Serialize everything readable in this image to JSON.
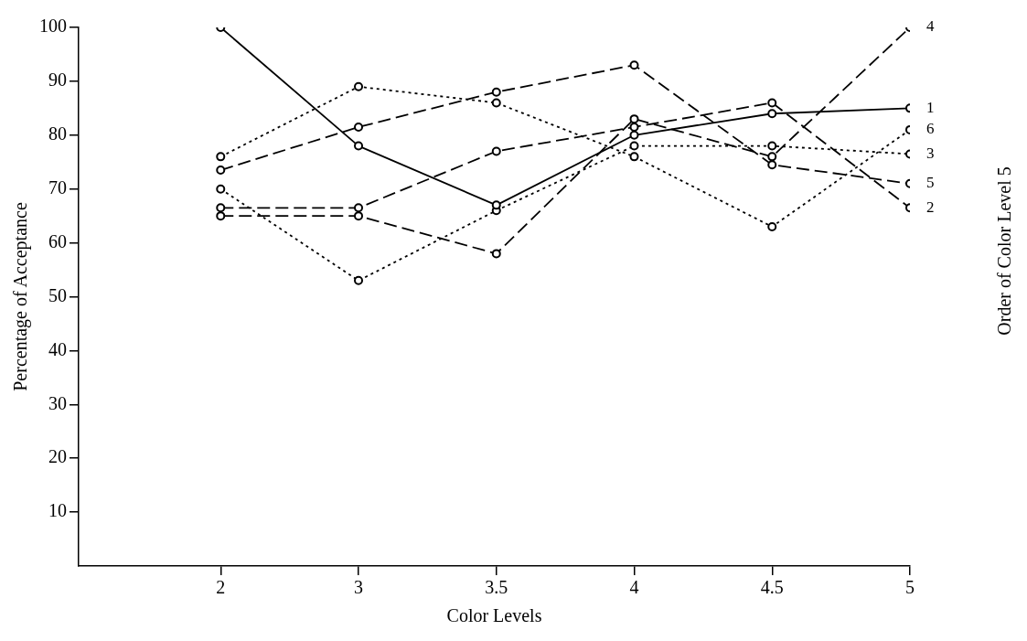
{
  "chart_data": {
    "type": "line",
    "xlabel": "Color Levels",
    "ylabel": "Percentage of Acceptance",
    "y2label": "Order of Color Level 5",
    "categories": [
      "2",
      "3",
      "3.5",
      "4",
      "4.5",
      "5"
    ],
    "series": [
      {
        "name": "4",
        "color": "#000000",
        "line_style": "dashed",
        "values": [
          65,
          65,
          58,
          83,
          76,
          100
        ]
      },
      {
        "name": "1",
        "color": "#000000",
        "line_style": "solid",
        "values": [
          100,
          78,
          67,
          80,
          84,
          85
        ]
      },
      {
        "name": "6",
        "color": "#000000",
        "line_style": "dotted",
        "values": [
          76,
          89,
          86,
          76,
          63,
          81
        ]
      },
      {
        "name": "3",
        "color": "#000000",
        "line_style": "dotted",
        "values": [
          70,
          53,
          66,
          78,
          78,
          76.5
        ]
      },
      {
        "name": "5",
        "color": "#000000",
        "line_style": "dashed",
        "values": [
          73.5,
          81.5,
          88,
          93,
          74.5,
          71
        ]
      },
      {
        "name": "2",
        "color": "#000000",
        "line_style": "dashed",
        "values": [
          66.5,
          66.5,
          77,
          81.5,
          86,
          66.5
        ]
      }
    ],
    "ylim": [
      0,
      100
    ],
    "yticks": [
      10,
      20,
      30,
      40,
      50,
      60,
      70,
      80,
      90,
      100
    ],
    "marker": "circle",
    "grid": false,
    "legend": false
  }
}
